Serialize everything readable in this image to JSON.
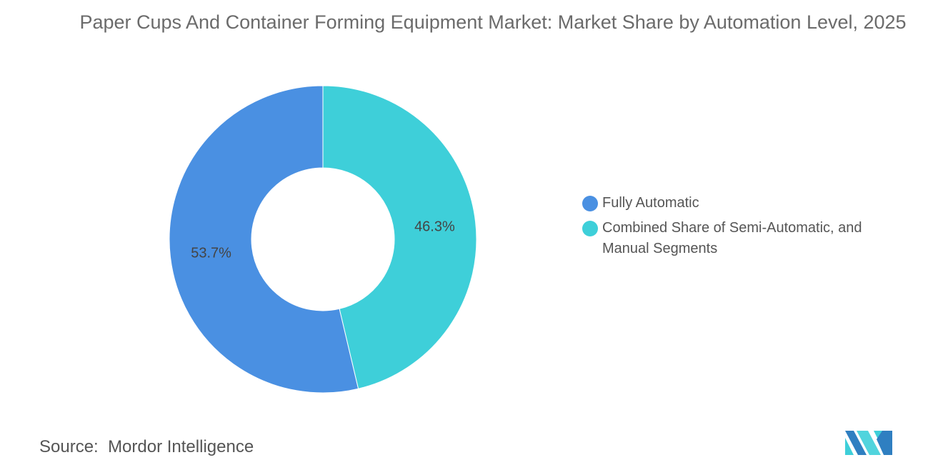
{
  "chart_data": {
    "type": "pie",
    "donut": true,
    "title": "Paper Cups And Container Forming Equipment Market: Market Share by Automation Level, 2025",
    "series": [
      {
        "name": "Fully Automatic",
        "value": 53.7,
        "label": "53.7%",
        "color": "#4a90e2"
      },
      {
        "name": "Combined Share of Semi-Automatic, and Manual Segments",
        "value": 46.3,
        "label": "46.3%",
        "color": "#3ecfd9"
      }
    ],
    "legend_position": "right"
  },
  "source": {
    "label": "Source:",
    "value": "Mordor Intelligence"
  }
}
